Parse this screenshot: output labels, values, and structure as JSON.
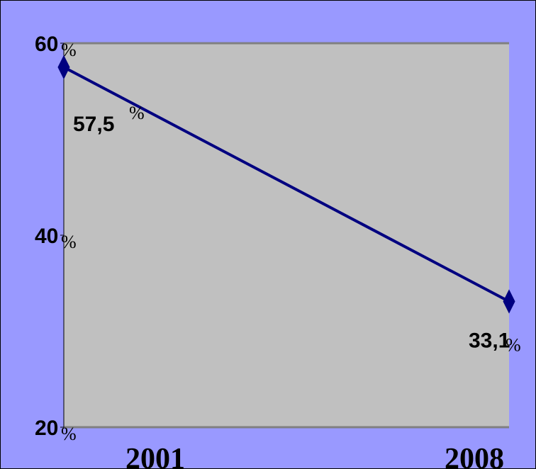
{
  "colors": {
    "background": "#9999ff",
    "plot_area": "#c0c0c0",
    "line": "#000080",
    "gridline": "#808080"
  },
  "chart_data": {
    "type": "line",
    "categories": [
      "2001",
      "2008"
    ],
    "values": [
      57.5,
      33.1
    ],
    "data_labels": [
      "57,5",
      "33,1"
    ],
    "ylim": [
      20,
      60
    ],
    "y_ticks": [
      {
        "value": 60,
        "label": "60"
      },
      {
        "value": 40,
        "label": "40"
      },
      {
        "value": 20,
        "label": "20"
      }
    ],
    "unit_symbol": "%",
    "marker": "diamond",
    "grid": true,
    "title": "",
    "xlabel": "",
    "ylabel": ""
  }
}
